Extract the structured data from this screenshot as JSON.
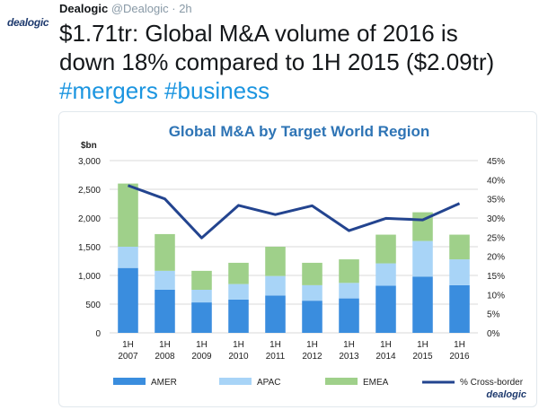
{
  "tweet": {
    "avatar_text": "dealogic",
    "name": "Dealogic",
    "handle": "@Dealogic",
    "separator": "·",
    "time": "2h",
    "text_line1": "$1.71tr: Global M&A volume of  2016 is",
    "text_line2": "down 18% compared to 1H 2015 ($2.09tr)",
    "hashtags": "#mergers #business"
  },
  "colors": {
    "amer": "#3a8dde",
    "apac": "#a8d4f7",
    "emea": "#9fd08a",
    "cross_border": "#23448f",
    "title": "#2e74b5"
  },
  "chart_data": {
    "type": "bar",
    "stacked": true,
    "title": "Global M&A by Target World Region",
    "ylabel": "$bn",
    "ylim": [
      0,
      3000
    ],
    "yticks": [
      "0",
      "500",
      "1,000",
      "1,500",
      "2,000",
      "2,500",
      "3,000"
    ],
    "y2lim": [
      0,
      45
    ],
    "y2ticks": [
      "0%",
      "5%",
      "10%",
      "15%",
      "20%",
      "25%",
      "30%",
      "35%",
      "40%",
      "45%"
    ],
    "categories": [
      [
        "1H",
        "2007"
      ],
      [
        "1H",
        "2008"
      ],
      [
        "1H",
        "2009"
      ],
      [
        "1H",
        "2010"
      ],
      [
        "1H",
        "2011"
      ],
      [
        "1H",
        "2012"
      ],
      [
        "1H",
        "2013"
      ],
      [
        "1H",
        "2014"
      ],
      [
        "1H",
        "2015"
      ],
      [
        "1H",
        "2016"
      ]
    ],
    "series": [
      {
        "name": "AMER",
        "type": "bar",
        "values": [
          1130,
          750,
          530,
          580,
          650,
          560,
          600,
          820,
          980,
          830
        ]
      },
      {
        "name": "APAC",
        "type": "bar",
        "values": [
          370,
          330,
          220,
          270,
          340,
          270,
          270,
          390,
          620,
          450
        ]
      },
      {
        "name": "EMEA",
        "type": "bar",
        "values": [
          1100,
          640,
          330,
          370,
          510,
          390,
          410,
          500,
          500,
          430
        ]
      },
      {
        "name": "% Cross-border",
        "type": "line",
        "axis": "right",
        "values": [
          38.5,
          35.0,
          24.8,
          33.3,
          30.9,
          33.2,
          26.7,
          29.9,
          29.5,
          33.8
        ]
      }
    ],
    "legend_position": "bottom",
    "grid": true,
    "watermark": "dealogic"
  }
}
